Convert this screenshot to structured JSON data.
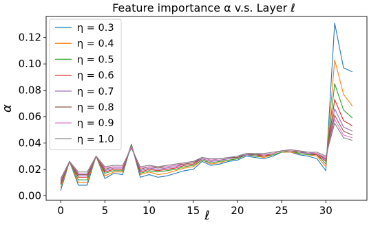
{
  "chart_data": {
    "type": "line",
    "title": "Feature importance α v.s. Layer ℓ",
    "xlabel": "ℓ",
    "ylabel": "α",
    "xlim": [
      -1.65,
      34.65
    ],
    "ylim": [
      -0.0035,
      0.136
    ],
    "xticks": [
      0,
      5,
      10,
      15,
      20,
      25,
      30
    ],
    "xtick_labels": [
      "0",
      "5",
      "10",
      "15",
      "20",
      "25",
      "30"
    ],
    "yticks": [
      0.0,
      0.02,
      0.04,
      0.06,
      0.08,
      0.1,
      0.12
    ],
    "ytick_labels": [
      "0.00",
      "0.02",
      "0.04",
      "0.06",
      "0.08",
      "0.10",
      "0.12"
    ],
    "grid": false,
    "legend_position": "upper-left",
    "x": [
      0,
      1,
      2,
      3,
      4,
      5,
      6,
      7,
      8,
      9,
      10,
      11,
      12,
      13,
      14,
      15,
      16,
      17,
      18,
      19,
      20,
      21,
      22,
      23,
      24,
      25,
      26,
      27,
      28,
      29,
      30,
      31,
      32,
      33
    ],
    "series": [
      {
        "name": "η = 0.3",
        "color": "#1f77b4",
        "values": [
          0.004,
          0.026,
          0.008,
          0.008,
          0.03,
          0.013,
          0.017,
          0.016,
          0.039,
          0.014,
          0.016,
          0.014,
          0.015,
          0.017,
          0.019,
          0.02,
          0.026,
          0.023,
          0.024,
          0.026,
          0.027,
          0.03,
          0.029,
          0.028,
          0.03,
          0.033,
          0.033,
          0.031,
          0.03,
          0.028,
          0.019,
          0.131,
          0.097,
          0.094
        ]
      },
      {
        "name": "η = 0.4",
        "color": "#ff7f0e",
        "values": [
          0.006,
          0.026,
          0.01,
          0.01,
          0.03,
          0.015,
          0.018,
          0.018,
          0.039,
          0.016,
          0.018,
          0.016,
          0.017,
          0.019,
          0.021,
          0.022,
          0.027,
          0.024,
          0.025,
          0.027,
          0.028,
          0.031,
          0.03,
          0.029,
          0.031,
          0.033,
          0.033,
          0.032,
          0.031,
          0.03,
          0.022,
          0.103,
          0.077,
          0.068
        ]
      },
      {
        "name": "η = 0.5",
        "color": "#2ca02c",
        "values": [
          0.008,
          0.026,
          0.012,
          0.012,
          0.03,
          0.017,
          0.019,
          0.019,
          0.039,
          0.017,
          0.019,
          0.018,
          0.019,
          0.02,
          0.022,
          0.023,
          0.027,
          0.025,
          0.026,
          0.027,
          0.028,
          0.031,
          0.03,
          0.03,
          0.031,
          0.033,
          0.034,
          0.032,
          0.031,
          0.031,
          0.024,
          0.085,
          0.065,
          0.059
        ]
      },
      {
        "name": "η = 0.6",
        "color": "#d62728",
        "values": [
          0.009,
          0.026,
          0.014,
          0.014,
          0.03,
          0.018,
          0.02,
          0.02,
          0.038,
          0.018,
          0.02,
          0.019,
          0.02,
          0.021,
          0.023,
          0.024,
          0.028,
          0.026,
          0.027,
          0.028,
          0.029,
          0.031,
          0.031,
          0.03,
          0.032,
          0.034,
          0.034,
          0.033,
          0.032,
          0.031,
          0.026,
          0.073,
          0.057,
          0.053
        ]
      },
      {
        "name": "η = 0.7",
        "color": "#9467bd",
        "values": [
          0.01,
          0.026,
          0.015,
          0.015,
          0.03,
          0.019,
          0.021,
          0.021,
          0.038,
          0.019,
          0.021,
          0.02,
          0.021,
          0.022,
          0.024,
          0.025,
          0.028,
          0.026,
          0.027,
          0.028,
          0.029,
          0.031,
          0.031,
          0.031,
          0.032,
          0.034,
          0.034,
          0.033,
          0.032,
          0.032,
          0.027,
          0.066,
          0.052,
          0.049
        ]
      },
      {
        "name": "η = 0.8",
        "color": "#8c564b",
        "values": [
          0.011,
          0.026,
          0.016,
          0.016,
          0.03,
          0.02,
          0.022,
          0.022,
          0.037,
          0.02,
          0.022,
          0.021,
          0.022,
          0.023,
          0.024,
          0.025,
          0.029,
          0.027,
          0.028,
          0.029,
          0.029,
          0.032,
          0.031,
          0.031,
          0.032,
          0.034,
          0.034,
          0.033,
          0.033,
          0.032,
          0.028,
          0.061,
          0.049,
          0.046
        ]
      },
      {
        "name": "η = 0.9",
        "color": "#e377c2",
        "values": [
          0.012,
          0.026,
          0.017,
          0.017,
          0.03,
          0.021,
          0.022,
          0.022,
          0.037,
          0.021,
          0.022,
          0.022,
          0.022,
          0.023,
          0.025,
          0.026,
          0.029,
          0.027,
          0.028,
          0.029,
          0.03,
          0.032,
          0.032,
          0.031,
          0.032,
          0.034,
          0.034,
          0.034,
          0.033,
          0.032,
          0.029,
          0.058,
          0.046,
          0.044
        ]
      },
      {
        "name": "η = 1.0",
        "color": "#7f7f7f",
        "values": [
          0.013,
          0.026,
          0.018,
          0.018,
          0.03,
          0.022,
          0.023,
          0.023,
          0.036,
          0.022,
          0.023,
          0.022,
          0.023,
          0.024,
          0.025,
          0.026,
          0.029,
          0.028,
          0.028,
          0.029,
          0.03,
          0.032,
          0.032,
          0.032,
          0.033,
          0.034,
          0.035,
          0.034,
          0.033,
          0.033,
          0.03,
          0.055,
          0.044,
          0.042
        ]
      }
    ]
  }
}
